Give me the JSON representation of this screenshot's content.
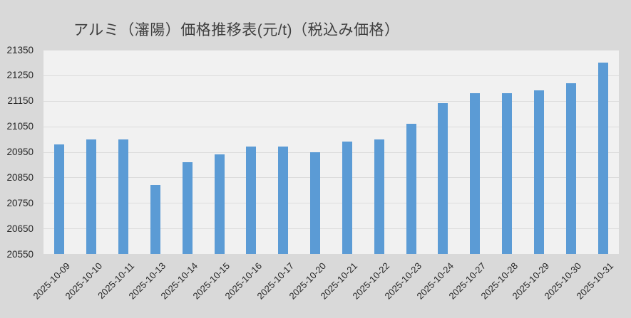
{
  "title": "アルミ（瀋陽）価格推移表(元/t)（税込み価格）",
  "colors": {
    "bar": "#5b9bd5",
    "plot_background": "#f1f1f1",
    "outer_background": "#d9d9d9",
    "gridline": "#dcdcdc",
    "title_text": "#3f3f3f",
    "axis_text": "#262626"
  },
  "chart_data": {
    "type": "bar",
    "title": "アルミ（瀋陽）価格推移表(元/t)（税込み価格）",
    "categories": [
      "2025-10-09",
      "2025-10-10",
      "2025-10-11",
      "2025-10-13",
      "2025-10-14",
      "2025-10-15",
      "2025-10-16",
      "2025-10-17",
      "2025-10-20",
      "2025-10-21",
      "2025-10-22",
      "2025-10-23",
      "2025-10-24",
      "2025-10-27",
      "2025-10-28",
      "2025-10-29",
      "2025-10-30",
      "2025-10-31"
    ],
    "values": [
      20980,
      21000,
      21000,
      20820,
      20910,
      20940,
      20970,
      20970,
      20950,
      20990,
      21000,
      21060,
      21140,
      21180,
      21180,
      21190,
      21220,
      21300
    ],
    "xlabel": "",
    "ylabel": "",
    "ylim": [
      20550,
      21350
    ],
    "ytick_step": 100,
    "grid": true,
    "legend": false
  }
}
